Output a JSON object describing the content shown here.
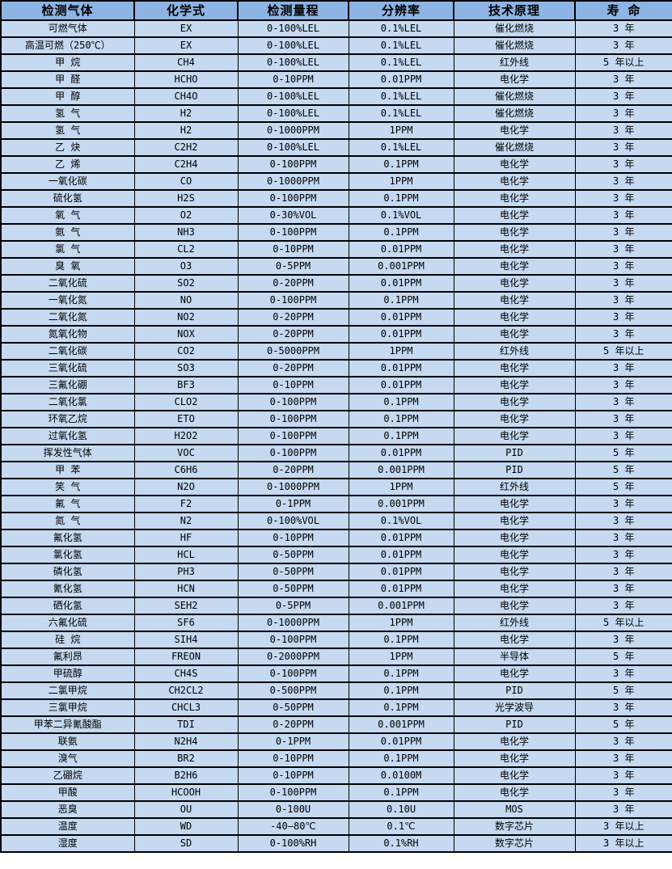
{
  "colors": {
    "header_bg": "#8db4e2",
    "row_bg": "#c5d9f1",
    "border": "#000000",
    "text": "#000000"
  },
  "table": {
    "headers": [
      "检测气体",
      "化学式",
      "检测量程",
      "分辨率",
      "技术原理",
      "寿 命"
    ],
    "rows": [
      [
        "可燃气体",
        "EX",
        "0-100%LEL",
        "0.1%LEL",
        "催化燃烧",
        "3 年"
      ],
      [
        "高温可燃（250℃）",
        "EX",
        "0-100%LEL",
        "0.1%LEL",
        "催化燃烧",
        "3 年"
      ],
      [
        "甲 烷",
        "CH4",
        "0-100%LEL",
        "0.1%LEL",
        "红外线",
        "5 年以上"
      ],
      [
        "甲 醛",
        "HCHO",
        "0-10PPM",
        "0.01PPM",
        "电化学",
        "3 年"
      ],
      [
        "甲 醇",
        "CH4O",
        "0-100%LEL",
        "0.1%LEL",
        "催化燃烧",
        "3 年"
      ],
      [
        "氢 气",
        "H2",
        "0-100%LEL",
        "0.1%LEL",
        "催化燃烧",
        "3 年"
      ],
      [
        "氢 气",
        "H2",
        "0-1000PPM",
        "1PPM",
        "电化学",
        "3 年"
      ],
      [
        "乙 炔",
        "C2H2",
        "0-100%LEL",
        "0.1%LEL",
        "催化燃烧",
        "3 年"
      ],
      [
        "乙 烯",
        "C2H4",
        "0-100PPM",
        "0.1PPM",
        "电化学",
        "3 年"
      ],
      [
        "一氧化碳",
        "CO",
        "0-1000PPM",
        "1PPM",
        "电化学",
        "3 年"
      ],
      [
        "硫化氢",
        "H2S",
        "0-100PPM",
        "0.1PPM",
        "电化学",
        "3 年"
      ],
      [
        "氧 气",
        "O2",
        "0-30%VOL",
        "0.1%VOL",
        "电化学",
        "3 年"
      ],
      [
        "氨 气",
        "NH3",
        "0-100PPM",
        "0.1PPM",
        "电化学",
        "3 年"
      ],
      [
        "氯 气",
        "CL2",
        "0-10PPM",
        "0.01PPM",
        "电化学",
        "3 年"
      ],
      [
        "臭 氧",
        "O3",
        "0-5PPM",
        "0.001PPM",
        "电化学",
        "3 年"
      ],
      [
        "二氧化硫",
        "SO2",
        "0-20PPM",
        "0.01PPM",
        "电化学",
        "3 年"
      ],
      [
        "一氧化氮",
        "NO",
        "0-100PPM",
        "0.1PPM",
        "电化学",
        "3 年"
      ],
      [
        "二氧化氮",
        "NO2",
        "0-20PPM",
        "0.01PPM",
        "电化学",
        "3 年"
      ],
      [
        "氮氧化物",
        "NOX",
        "0-20PPM",
        "0.01PPM",
        "电化学",
        "3 年"
      ],
      [
        "二氧化碳",
        "CO2",
        "0-5000PPM",
        "1PPM",
        "红外线",
        "5 年以上"
      ],
      [
        "三氧化硫",
        "SO3",
        "0-20PPM",
        "0.01PPM",
        "电化学",
        "3 年"
      ],
      [
        "三氟化硼",
        "BF3",
        "0-10PPM",
        "0.01PPM",
        "电化学",
        "3 年"
      ],
      [
        "二氧化氯",
        "CLO2",
        "0-100PPM",
        "0.1PPM",
        "电化学",
        "3 年"
      ],
      [
        "环氧乙烷",
        "ETO",
        "0-100PPM",
        "0.1PPM",
        "电化学",
        "3 年"
      ],
      [
        "过氧化氢",
        "H2O2",
        "0-100PPM",
        "0.1PPM",
        "电化学",
        "3 年"
      ],
      [
        "挥发性气体",
        "VOC",
        "0-100PPM",
        "0.01PPM",
        "PID",
        "5 年"
      ],
      [
        "甲 苯",
        "C6H6",
        "0-20PPM",
        "0.001PPM",
        "PID",
        "5 年"
      ],
      [
        "笑 气",
        "N2O",
        "0-1000PPM",
        "1PPM",
        "红外线",
        "5 年"
      ],
      [
        "氟 气",
        "F2",
        "0-1PPM",
        "0.001PPM",
        "电化学",
        "3 年"
      ],
      [
        "氮 气",
        "N2",
        "0-100%VOL",
        "0.1%VOL",
        "电化学",
        "3 年"
      ],
      [
        "氟化氢",
        "HF",
        "0-10PPM",
        "0.01PPM",
        "电化学",
        "3 年"
      ],
      [
        "氯化氢",
        "HCL",
        "0-50PPM",
        "0.01PPM",
        "电化学",
        "3 年"
      ],
      [
        "磷化氢",
        "PH3",
        "0-50PPM",
        "0.01PPM",
        "电化学",
        "3 年"
      ],
      [
        "氰化氢",
        "HCN",
        "0-50PPM",
        "0.01PPM",
        "电化学",
        "3 年"
      ],
      [
        "硒化氢",
        "SEH2",
        "0-5PPM",
        "0.001PPM",
        "电化学",
        "3 年"
      ],
      [
        "六氟化硫",
        "SF6",
        "0-1000PPM",
        "1PPM",
        "红外线",
        "5 年以上"
      ],
      [
        "硅 烷",
        "SIH4",
        "0-100PPM",
        "0.1PPM",
        "电化学",
        "3 年"
      ],
      [
        "氟利昂",
        "FREON",
        "0-2000PPM",
        "1PPM",
        "半导体",
        "5 年"
      ],
      [
        "甲硫醇",
        "CH4S",
        "0-100PPM",
        "0.1PPM",
        "电化学",
        "3 年"
      ],
      [
        "二氯甲烷",
        "CH2CL2",
        "0-500PPM",
        "0.1PPM",
        "PID",
        "5 年"
      ],
      [
        "三氯甲烷",
        "CHCL3",
        "0-50PPM",
        "0.1PPM",
        "光学波导",
        "3 年"
      ],
      [
        "甲苯二异氰酸酯",
        "TDI",
        "0-20PPM",
        "0.001PPM",
        "PID",
        "5 年"
      ],
      [
        "联氨",
        "N2H4",
        "0-1PPM",
        "0.01PPM",
        "电化学",
        "3 年"
      ],
      [
        "溴气",
        "BR2",
        "0-10PPM",
        "0.1PPM",
        "电化学",
        "3 年"
      ],
      [
        "乙硼烷",
        "B2H6",
        "0-10PPM",
        "0.0100M",
        "电化学",
        "3 年"
      ],
      [
        "甲酸",
        "HCOOH",
        "0-100PPM",
        "0.1PPM",
        "电化学",
        "3 年"
      ],
      [
        "恶臭",
        "OU",
        "0-100U",
        "0.10U",
        "MOS",
        "3 年"
      ],
      [
        "温度",
        "WD",
        "-40—80℃",
        "0.1℃",
        "数字芯片",
        "3 年以上"
      ],
      [
        "湿度",
        "SD",
        "0-100%RH",
        "0.1%RH",
        "数字芯片",
        "3 年以上"
      ]
    ]
  }
}
